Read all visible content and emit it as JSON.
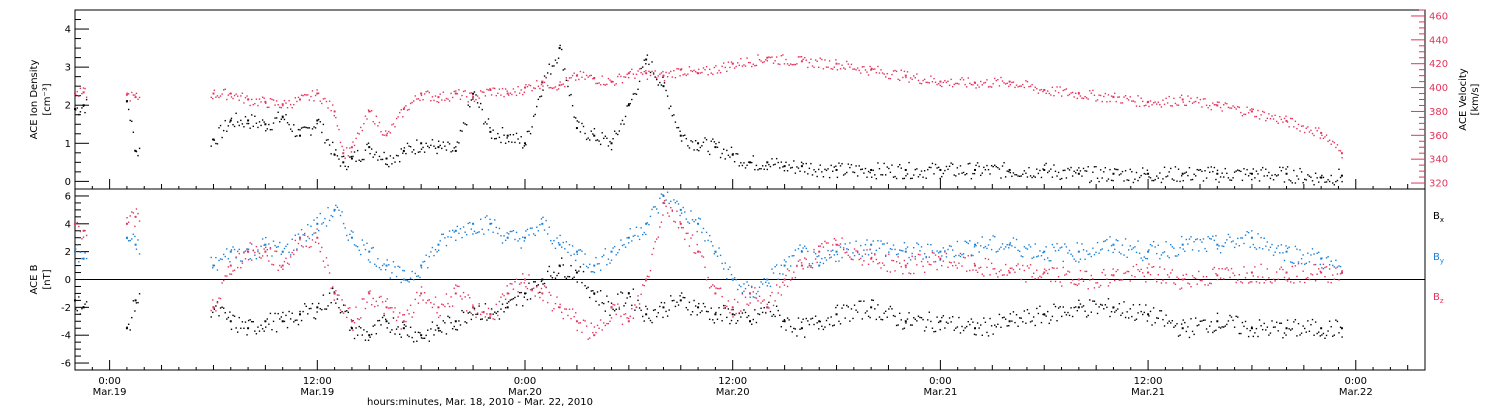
{
  "x_title": "hours:minutes, Mar. 18, 2010 - Mar. 22, 2010",
  "x_ticks": [
    {
      "hour": 0,
      "time": "0:00",
      "date": "Mar.19"
    },
    {
      "hour": 12,
      "time": "12:00",
      "date": "Mar.19"
    },
    {
      "hour": 24,
      "time": "0:00",
      "date": "Mar.20"
    },
    {
      "hour": 36,
      "time": "12:00",
      "date": "Mar.20"
    },
    {
      "hour": 48,
      "time": "0:00",
      "date": "Mar.21"
    },
    {
      "hour": 60,
      "time": "12:00",
      "date": "Mar.21"
    },
    {
      "hour": 72,
      "time": "0:00",
      "date": "Mar.22"
    }
  ],
  "colors": {
    "black": "#000000",
    "blue": "#1a7fd6",
    "red": "#e5335c"
  },
  "chart_data": [
    {
      "type": "scatter",
      "title": "",
      "ylabel": "ACE Ion Density",
      "yunit": "[cm⁻³]",
      "ylim": [
        -0.2,
        4.5
      ],
      "yticks": [
        0,
        1,
        2,
        3,
        4
      ],
      "y2label": "ACE Velocity",
      "y2unit": "[km/s]",
      "y2lim": [
        315,
        465
      ],
      "y2ticks": [
        320,
        340,
        360,
        380,
        400,
        420,
        440,
        460
      ],
      "xlim_hours": [
        -2,
        76
      ],
      "series": [
        {
          "axis": "left",
          "color": "#000000",
          "x": [
            -2,
            -1.5,
            1,
            1.5,
            6,
            7,
            8,
            9,
            10,
            11,
            12,
            13,
            13.5,
            14,
            15,
            16,
            17,
            18,
            19,
            20,
            21,
            22,
            23,
            24,
            25,
            26,
            27,
            28,
            29,
            30,
            31,
            32,
            33,
            34,
            35,
            36,
            37,
            38,
            39,
            40,
            42,
            44,
            46,
            48,
            50,
            52,
            54,
            56,
            58,
            60,
            62,
            64,
            66,
            68,
            70,
            71.2
          ],
          "y": [
            1.9,
            2.0,
            2.1,
            0.8,
            1.1,
            1.6,
            1.6,
            1.5,
            1.7,
            1.2,
            1.6,
            0.7,
            0.5,
            0.6,
            0.9,
            0.6,
            0.8,
            1.0,
            0.9,
            0.8,
            2.3,
            1.3,
            1.2,
            1.0,
            2.6,
            3.5,
            1.4,
            1.2,
            1.0,
            2.0,
            3.2,
            2.5,
            1.2,
            1.0,
            0.9,
            0.7,
            0.5,
            0.5,
            0.4,
            0.4,
            0.3,
            0.3,
            0.3,
            0.3,
            0.3,
            0.3,
            0.3,
            0.2,
            0.2,
            0.2,
            0.2,
            0.2,
            0.2,
            0.2,
            0.1,
            0.15
          ]
        },
        {
          "axis": "right",
          "color": "#e5335c",
          "x": [
            -2,
            -1.5,
            1,
            1.5,
            6,
            7,
            8,
            9,
            10,
            11,
            12,
            13,
            13.5,
            14,
            15,
            16,
            17,
            18,
            19,
            20,
            21,
            22,
            23,
            24,
            25,
            26,
            27,
            28,
            29,
            30,
            31,
            32,
            33,
            34,
            36,
            38,
            40,
            42,
            44,
            46,
            48,
            50,
            52,
            54,
            56,
            58,
            60,
            62,
            64,
            66,
            68,
            70,
            71.2
          ],
          "y": [
            395,
            396,
            394,
            392,
            395,
            395,
            390,
            388,
            386,
            390,
            395,
            380,
            345,
            350,
            380,
            360,
            382,
            395,
            392,
            395,
            392,
            398,
            395,
            400,
            405,
            402,
            410,
            408,
            405,
            412,
            412,
            410,
            415,
            412,
            420,
            425,
            422,
            420,
            415,
            410,
            405,
            404,
            405,
            398,
            395,
            392,
            388,
            390,
            385,
            380,
            372,
            362,
            345
          ]
        }
      ]
    },
    {
      "type": "scatter",
      "title": "",
      "ylabel": "ACE B",
      "yunit": "[nT]",
      "ylim": [
        -6.5,
        6.5
      ],
      "yticks": [
        -6,
        -4,
        -2,
        0,
        2,
        4,
        6
      ],
      "xlim_hours": [
        -2,
        76
      ],
      "legend": [
        {
          "label": "B",
          "sub": "x",
          "color": "#000000"
        },
        {
          "label": "B",
          "sub": "y",
          "color": "#1a7fd6"
        },
        {
          "label": "B",
          "sub": "z",
          "color": "#e5335c"
        }
      ],
      "series": [
        {
          "name": "Bx",
          "color": "#000000",
          "x": [
            -2,
            -1.5,
            1,
            1.5,
            6,
            7,
            8,
            9,
            10,
            11,
            12,
            13,
            14,
            15,
            16,
            17,
            18,
            19,
            20,
            21,
            22,
            23,
            24,
            25,
            26,
            27,
            28,
            29,
            30,
            31,
            32,
            33,
            34,
            35,
            36,
            37,
            38,
            39,
            40,
            41,
            42,
            44,
            46,
            48,
            50,
            52,
            54,
            56,
            58,
            60,
            62,
            64,
            66,
            68,
            70,
            71.2
          ],
          "y": [
            -1.5,
            -2,
            -3.5,
            -1.5,
            -2,
            -3,
            -3.5,
            -3,
            -3,
            -2.5,
            -2,
            -1,
            -3.5,
            -4,
            -3,
            -3.5,
            -4,
            -3.5,
            -3,
            -2,
            -2.5,
            -2,
            -1,
            0,
            1,
            0.5,
            -1,
            -2,
            -1,
            -2.5,
            -2,
            -1.5,
            -2,
            -2.5,
            -2.5,
            -3,
            -2,
            -3,
            -3.5,
            -3,
            -2.5,
            -2,
            -3,
            -3,
            -3.5,
            -3,
            -2.5,
            -2,
            -2,
            -2.5,
            -3.5,
            -3,
            -3.5,
            -3.5,
            -3.5,
            -3.5
          ]
        },
        {
          "name": "By",
          "color": "#1a7fd6",
          "x": [
            -2,
            -1.5,
            1,
            1.5,
            6,
            7,
            8,
            9,
            10,
            11,
            12,
            13,
            14,
            15,
            16,
            17,
            18,
            19,
            20,
            21,
            22,
            23,
            24,
            25,
            26,
            27,
            28,
            29,
            30,
            31,
            32,
            33,
            34,
            35,
            36,
            37,
            38,
            39,
            40,
            41,
            42,
            44,
            46,
            48,
            50,
            52,
            54,
            56,
            58,
            60,
            62,
            64,
            66,
            68,
            70,
            71.2
          ],
          "y": [
            2,
            1.5,
            3,
            2.5,
            1,
            2,
            2,
            2.5,
            2,
            3,
            4,
            5,
            3,
            2,
            1,
            0,
            1,
            2.5,
            3.5,
            4,
            4,
            3,
            3,
            4,
            2.5,
            2,
            1,
            2,
            3,
            4,
            6,
            5,
            4,
            2,
            0,
            -1,
            0,
            1,
            2,
            1,
            2,
            2.5,
            2,
            2,
            2.5,
            2.5,
            2,
            2,
            2.5,
            2,
            2.5,
            2.5,
            3,
            2,
            1.5,
            0.5
          ]
        },
        {
          "name": "Bz",
          "color": "#e5335c",
          "x": [
            -2,
            -1.5,
            1,
            1.5,
            6,
            7,
            8,
            9,
            10,
            11,
            12,
            13,
            14,
            15,
            16,
            17,
            18,
            19,
            20,
            21,
            22,
            23,
            24,
            25,
            26,
            27,
            28,
            29,
            30,
            31,
            32,
            33,
            34,
            35,
            36,
            37,
            38,
            39,
            40,
            41,
            42,
            44,
            46,
            48,
            50,
            52,
            54,
            56,
            58,
            60,
            62,
            64,
            66,
            68,
            70,
            71.2
          ],
          "y": [
            4,
            3.5,
            4,
            4.5,
            -2,
            1,
            2,
            2,
            1,
            3,
            3,
            -1,
            -3,
            -1,
            -2,
            -3,
            -1,
            -2,
            -1,
            -2,
            -2.5,
            -1,
            0,
            -1,
            -2,
            -3,
            -4,
            -2,
            -3,
            0,
            5.5,
            4,
            2,
            -1,
            -2,
            -1,
            -2,
            0,
            1,
            2,
            2.5,
            1.5,
            1,
            1.5,
            1,
            0.5,
            0.5,
            0,
            0.3,
            0.5,
            0,
            0.3,
            0.5,
            0.5,
            0.5,
            0.5
          ]
        }
      ]
    }
  ]
}
